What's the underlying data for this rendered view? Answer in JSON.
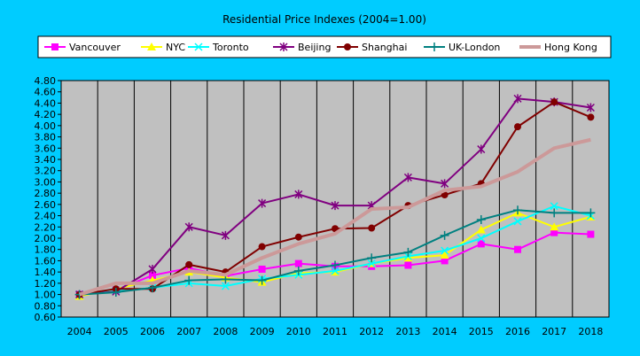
{
  "chart_data": {
    "type": "line",
    "title": "Residential Price Indexes (2004=1.00)",
    "categories": [
      "2004",
      "2005",
      "2006",
      "2007",
      "2008",
      "2009",
      "2010",
      "2011",
      "2012",
      "2013",
      "2014",
      "2015",
      "2016",
      "2017",
      "2018"
    ],
    "ylim": [
      0.6,
      4.8
    ],
    "y_ticks": [
      "0.60",
      "0.80",
      "1.00",
      "1.20",
      "1.40",
      "1.60",
      "1.80",
      "2.00",
      "2.20",
      "2.40",
      "2.60",
      "2.80",
      "3.00",
      "3.20",
      "3.40",
      "3.60",
      "3.80",
      "4.00",
      "4.20",
      "4.40",
      "4.60",
      "4.80"
    ],
    "grid": "vertical",
    "legend_position": "top",
    "plot_background": "#c0c0c0",
    "series": [
      {
        "name": "Vancouver",
        "color": "#ff00ff",
        "marker": "square",
        "values": [
          1.0,
          1.08,
          1.34,
          1.47,
          1.33,
          1.45,
          1.55,
          1.5,
          1.5,
          1.52,
          1.6,
          1.9,
          1.8,
          2.1,
          2.07
        ]
      },
      {
        "name": "NYC",
        "color": "#ffff00",
        "marker": "triangle",
        "values": [
          0.97,
          1.1,
          1.25,
          1.4,
          1.3,
          1.22,
          1.38,
          1.4,
          1.55,
          1.65,
          1.7,
          2.15,
          2.45,
          2.2,
          2.38
        ]
      },
      {
        "name": "Toronto",
        "color": "#00ffff",
        "marker": "x",
        "values": [
          1.0,
          1.06,
          1.12,
          1.2,
          1.15,
          1.28,
          1.35,
          1.42,
          1.55,
          1.68,
          1.78,
          2.0,
          2.3,
          2.57,
          2.4
        ]
      },
      {
        "name": "Beijing",
        "color": "#800080",
        "marker": "star",
        "values": [
          1.0,
          1.05,
          1.45,
          2.2,
          2.05,
          2.62,
          2.78,
          2.58,
          2.58,
          3.08,
          2.97,
          3.58,
          4.48,
          4.42,
          4.32
        ]
      },
      {
        "name": "Shanghai",
        "color": "#800000",
        "marker": "circle",
        "values": [
          1.0,
          1.1,
          1.1,
          1.53,
          1.4,
          1.85,
          2.02,
          2.17,
          2.18,
          2.58,
          2.77,
          2.97,
          3.98,
          4.42,
          4.15
        ]
      },
      {
        "name": "UK-London",
        "color": "#008080",
        "marker": "plus",
        "values": [
          1.0,
          1.04,
          1.12,
          1.25,
          1.27,
          1.25,
          1.42,
          1.52,
          1.65,
          1.75,
          2.05,
          2.33,
          2.5,
          2.45,
          2.45
        ]
      },
      {
        "name": "Hong Kong",
        "color": "#cc9999",
        "marker": "none",
        "values": [
          1.0,
          1.2,
          1.2,
          1.42,
          1.35,
          1.65,
          1.9,
          2.08,
          2.52,
          2.55,
          2.85,
          2.92,
          3.18,
          3.6,
          3.75
        ]
      }
    ]
  }
}
